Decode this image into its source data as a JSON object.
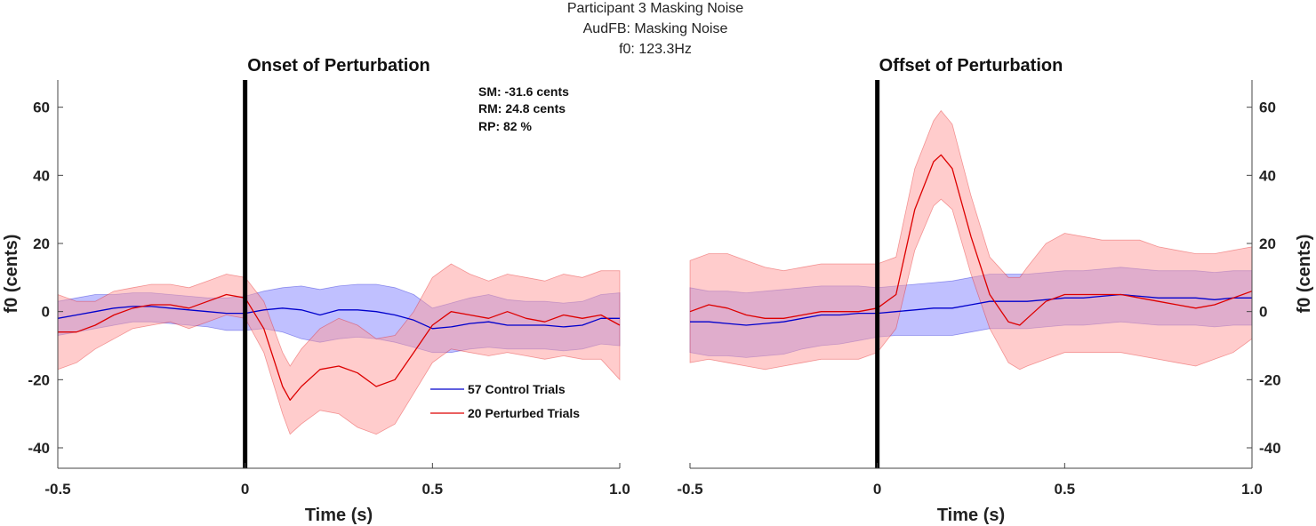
{
  "figure": {
    "suptitle": [
      "Participant 3 Masking Noise",
      "AudFB: Masking Noise",
      "f0: 123.3Hz"
    ]
  },
  "stats": {
    "sm": "SM: -31.6 cents",
    "rm": "RM: 24.8 cents",
    "rp": "RP: 82 %"
  },
  "legend": {
    "control": "57 Control Trials",
    "perturbed": "20 Perturbed Trials",
    "placement": "lower-right"
  },
  "colors": {
    "control_line": "#0000cc",
    "control_band": "#8c8cff",
    "perturbed_line": "#dd0000",
    "perturbed_band": "#ff9a9a",
    "onset_marker": "#000000"
  },
  "chart_data": [
    {
      "type": "line",
      "title": "Onset of Perturbation",
      "xlabel": "Time (s)",
      "ylabel": "f0 (cents)",
      "xlim": [
        -0.5,
        1.0
      ],
      "ylim": [
        -46,
        68
      ],
      "xticks": [
        -0.5,
        0,
        0.5,
        1.0
      ],
      "xtick_labels": [
        "-0.5",
        "0",
        "0.5",
        "1.0"
      ],
      "yticks": [
        -40,
        -20,
        0,
        20,
        40,
        60
      ],
      "ytick_labels": [
        "-40",
        "-20",
        "0",
        "20",
        "40",
        "60"
      ],
      "y_axis_side": "left",
      "grid": false,
      "vline_x": 0,
      "series": [
        {
          "name": "57 Control Trials",
          "x": [
            -0.5,
            -0.45,
            -0.4,
            -0.35,
            -0.3,
            -0.25,
            -0.2,
            -0.15,
            -0.1,
            -0.05,
            0.0,
            0.05,
            0.1,
            0.15,
            0.2,
            0.25,
            0.3,
            0.35,
            0.4,
            0.45,
            0.5,
            0.55,
            0.6,
            0.65,
            0.7,
            0.75,
            0.8,
            0.85,
            0.9,
            0.95,
            1.0
          ],
          "mean": [
            -2,
            -1,
            0,
            1,
            1.5,
            1.5,
            1,
            0.5,
            0,
            -0.5,
            -0.5,
            0.5,
            1,
            0.5,
            -1,
            0.5,
            0.5,
            0,
            -1,
            -2.5,
            -5,
            -4.5,
            -3.5,
            -3,
            -4,
            -4,
            -4,
            -4.5,
            -4,
            -2,
            -2
          ],
          "lower": [
            -7,
            -6,
            -5,
            -4,
            -3,
            -3,
            -3.5,
            -4,
            -4.5,
            -5.5,
            -5.5,
            -5,
            -6,
            -8,
            -9,
            -8,
            -7.5,
            -8,
            -9,
            -10.5,
            -12,
            -12,
            -11,
            -10.5,
            -11,
            -11,
            -11,
            -11.5,
            -11,
            -9.5,
            -10
          ],
          "upper": [
            3,
            4,
            5,
            5,
            5.5,
            5.5,
            5,
            4.5,
            4,
            4,
            4.5,
            6,
            7,
            7.5,
            6.5,
            7.5,
            8,
            8,
            7,
            5,
            1,
            2.5,
            4,
            5,
            3.5,
            3,
            3,
            2.5,
            3,
            5,
            5.5
          ]
        },
        {
          "name": "20 Perturbed Trials",
          "x": [
            -0.5,
            -0.45,
            -0.4,
            -0.35,
            -0.3,
            -0.25,
            -0.2,
            -0.15,
            -0.1,
            -0.05,
            0.0,
            0.05,
            0.1,
            0.12,
            0.15,
            0.2,
            0.25,
            0.3,
            0.35,
            0.4,
            0.45,
            0.5,
            0.55,
            0.6,
            0.65,
            0.7,
            0.75,
            0.8,
            0.85,
            0.9,
            0.95,
            1.0
          ],
          "mean": [
            -6,
            -6,
            -4,
            -1,
            1,
            2,
            2,
            1,
            3,
            5,
            4,
            -5,
            -22,
            -26,
            -22,
            -17,
            -16,
            -18,
            -22,
            -20,
            -12,
            -4,
            0,
            -1,
            -2,
            0,
            -2,
            -3,
            -1,
            -2,
            -1,
            -4
          ],
          "lower": [
            -17,
            -15,
            -11,
            -8,
            -5,
            -4,
            -3,
            -5,
            -3,
            -1,
            -2,
            -12,
            -30,
            -36,
            -33,
            -29,
            -30,
            -34,
            -36,
            -33,
            -24,
            -15,
            -11,
            -12,
            -13,
            -12,
            -13,
            -14,
            -13,
            -14,
            -14,
            -20
          ],
          "upper": [
            5,
            3,
            3,
            6,
            7,
            8,
            8,
            7,
            9,
            11,
            10,
            3,
            -12,
            -16,
            -11,
            -5,
            -2,
            -4,
            -8,
            -7,
            0,
            10,
            14,
            11,
            9,
            11,
            10,
            9,
            11,
            10,
            12,
            12
          ]
        }
      ]
    },
    {
      "type": "line",
      "title": "Offset of Perturbation",
      "xlabel": "Time (s)",
      "ylabel": "f0 (cents)",
      "xlim": [
        -0.5,
        1.0
      ],
      "ylim": [
        -46,
        68
      ],
      "xticks": [
        -0.5,
        0,
        0.5,
        1.0
      ],
      "xtick_labels": [
        "-0.5",
        "0",
        "0.5",
        "1.0"
      ],
      "yticks": [
        -40,
        -20,
        0,
        20,
        40,
        60
      ],
      "ytick_labels": [
        "-40",
        "-20",
        "0",
        "20",
        "40",
        "60"
      ],
      "y_axis_side": "right",
      "grid": false,
      "vline_x": 0,
      "series": [
        {
          "name": "57 Control Trials",
          "x": [
            -0.5,
            -0.45,
            -0.4,
            -0.35,
            -0.3,
            -0.25,
            -0.2,
            -0.15,
            -0.1,
            -0.05,
            0.0,
            0.05,
            0.1,
            0.15,
            0.2,
            0.25,
            0.3,
            0.35,
            0.4,
            0.45,
            0.5,
            0.55,
            0.6,
            0.65,
            0.7,
            0.75,
            0.8,
            0.85,
            0.9,
            0.95,
            1.0
          ],
          "mean": [
            -3,
            -3,
            -3.5,
            -4,
            -3.5,
            -3,
            -2,
            -1,
            -1,
            -0.5,
            -0.5,
            0,
            0.5,
            1,
            1,
            2,
            3,
            3,
            3,
            3.5,
            4,
            4,
            4.5,
            5,
            4.5,
            4,
            4,
            4,
            3.5,
            4,
            4
          ],
          "lower": [
            -12,
            -13,
            -13,
            -13.5,
            -13,
            -12.5,
            -11,
            -10,
            -9.5,
            -8.5,
            -7.5,
            -7,
            -7,
            -7,
            -7,
            -6,
            -5,
            -5,
            -5,
            -4.5,
            -4,
            -4,
            -3.5,
            -3,
            -3.5,
            -4,
            -4,
            -4,
            -4.5,
            -4,
            -4
          ],
          "upper": [
            7,
            6,
            6,
            5.5,
            6,
            6.5,
            7,
            7.5,
            7.5,
            7.5,
            7,
            7.5,
            8,
            8.5,
            9,
            10,
            11,
            11,
            11,
            11.5,
            12,
            12,
            12.5,
            13,
            12.5,
            12,
            12,
            12,
            11.5,
            12,
            12
          ]
        },
        {
          "name": "20 Perturbed Trials",
          "x": [
            -0.5,
            -0.45,
            -0.4,
            -0.35,
            -0.3,
            -0.25,
            -0.2,
            -0.15,
            -0.1,
            -0.05,
            0.0,
            0.05,
            0.1,
            0.15,
            0.17,
            0.2,
            0.25,
            0.3,
            0.35,
            0.38,
            0.4,
            0.45,
            0.5,
            0.55,
            0.6,
            0.65,
            0.7,
            0.75,
            0.8,
            0.85,
            0.9,
            0.95,
            1.0
          ],
          "mean": [
            0,
            2,
            1,
            -1,
            -2,
            -2,
            -1,
            0,
            0,
            0,
            1,
            5,
            30,
            44,
            46,
            42,
            22,
            5,
            -3,
            -4,
            -2,
            3,
            5,
            5,
            5,
            5,
            4,
            3,
            2,
            1,
            2,
            4,
            6
          ],
          "lower": [
            -15,
            -14,
            -15,
            -16,
            -17,
            -16,
            -15,
            -14,
            -14,
            -14,
            -12,
            -5,
            18,
            31,
            33,
            30,
            11,
            -5,
            -15,
            -17,
            -16,
            -14,
            -12,
            -12,
            -12,
            -12,
            -13,
            -14,
            -15,
            -16,
            -14,
            -12,
            -8
          ],
          "upper": [
            15,
            17,
            17,
            15,
            13,
            12,
            13,
            14,
            14,
            14,
            14,
            16,
            42,
            56,
            59,
            55,
            34,
            16,
            10,
            10,
            13,
            20,
            23,
            22,
            21,
            21,
            21,
            19,
            18,
            17,
            17,
            18,
            19
          ]
        }
      ]
    }
  ]
}
